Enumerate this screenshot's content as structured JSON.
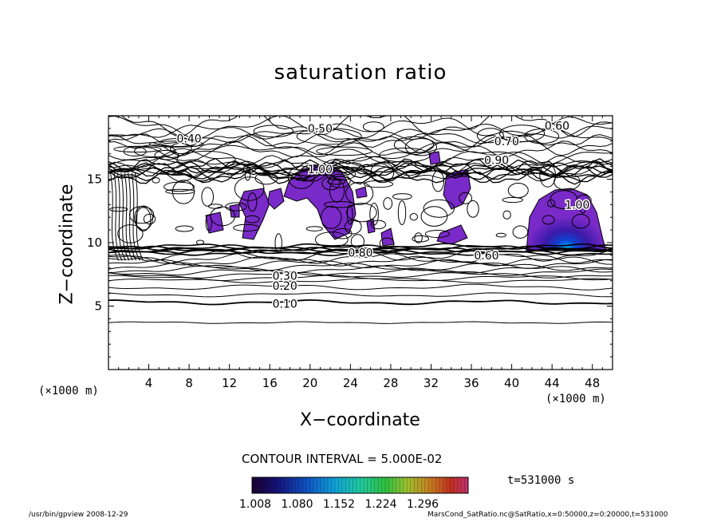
{
  "title": "saturation ratio",
  "xlabel": "X−coordinate",
  "ylabel": "Z−coordinate",
  "x_unit": "(×1000 m)",
  "y_unit": "(×1000 m)",
  "contour_interval_text": "CONTOUR INTERVAL = 5.000E-02",
  "time_text": "t=531000 s",
  "footer_left": "/usr/bin/gpview   2008-12-29",
  "footer_right": "MarsCond_SatRatio.nc@SatRatio,x=0:50000,z=0:20000,t=531000",
  "chart_data": {
    "type": "heatmap",
    "title": "saturation ratio",
    "xlabel": "X-coordinate",
    "ylabel": "Z-coordinate",
    "x_unit": "x1000 m",
    "y_unit": "x1000 m",
    "xlim": [
      0,
      50
    ],
    "ylim": [
      0,
      20
    ],
    "x_ticks": [
      4,
      8,
      12,
      16,
      20,
      24,
      28,
      32,
      36,
      40,
      44,
      48
    ],
    "y_ticks": [
      5,
      10,
      15
    ],
    "contour_interval": 0.05,
    "contour_labels": [
      {
        "text": "0.10",
        "x": 17.5,
        "z": 5.2
      },
      {
        "text": "0.20",
        "x": 17.5,
        "z": 6.6
      },
      {
        "text": "0.30",
        "x": 17.5,
        "z": 7.4
      },
      {
        "text": "0.40",
        "x": 8.0,
        "z": 18.2
      },
      {
        "text": "0.50",
        "x": 21.0,
        "z": 19.0
      },
      {
        "text": "0.60",
        "x": 44.5,
        "z": 19.2
      },
      {
        "text": "0.70",
        "x": 39.5,
        "z": 18.0
      },
      {
        "text": "0.90",
        "x": 38.5,
        "z": 16.5
      },
      {
        "text": "1.00",
        "x": 21.0,
        "z": 15.8
      },
      {
        "text": "1.00",
        "x": 46.5,
        "z": 13.0
      },
      {
        "text": "0.80",
        "x": 25.0,
        "z": 9.2
      },
      {
        "text": "0.60",
        "x": 37.5,
        "z": 9.0
      }
    ],
    "colorbar": {
      "min": 1.008,
      "max": 1.33,
      "ticks": [
        "1.008",
        "1.080",
        "1.152",
        "1.224",
        "1.296"
      ],
      "colors": [
        "#1a0030",
        "#14147a",
        "#1050c0",
        "#10a0d8",
        "#20c8a0",
        "#30c040",
        "#a0c030",
        "#c87820",
        "#c03020",
        "#c03070"
      ]
    },
    "time": "t=531000 s"
  }
}
